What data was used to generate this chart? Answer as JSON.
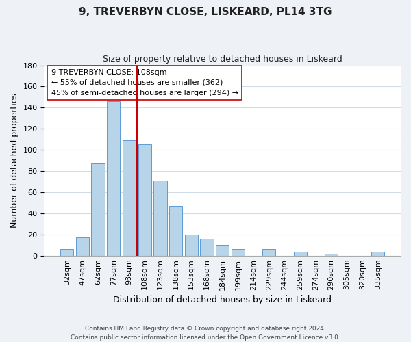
{
  "title": "9, TREVERBYN CLOSE, LISKEARD, PL14 3TG",
  "subtitle": "Size of property relative to detached houses in Liskeard",
  "xlabel": "Distribution of detached houses by size in Liskeard",
  "ylabel": "Number of detached properties",
  "categories": [
    "32sqm",
    "47sqm",
    "62sqm",
    "77sqm",
    "93sqm",
    "108sqm",
    "123sqm",
    "138sqm",
    "153sqm",
    "168sqm",
    "184sqm",
    "199sqm",
    "214sqm",
    "229sqm",
    "244sqm",
    "259sqm",
    "274sqm",
    "290sqm",
    "305sqm",
    "320sqm",
    "335sqm"
  ],
  "values": [
    6,
    17,
    87,
    146,
    109,
    105,
    71,
    47,
    20,
    16,
    10,
    6,
    0,
    6,
    0,
    4,
    0,
    2,
    0,
    0,
    4
  ],
  "bar_color": "#b8d4e8",
  "bar_edge_color": "#5b9bd5",
  "highlight_x": "108sqm",
  "highlight_line_color": "#cc0000",
  "ylim": [
    0,
    180
  ],
  "yticks": [
    0,
    20,
    40,
    60,
    80,
    100,
    120,
    140,
    160,
    180
  ],
  "annotation_text": "9 TREVERBYN CLOSE: 108sqm\n← 55% of detached houses are smaller (362)\n45% of semi-detached houses are larger (294) →",
  "annotation_box_edgecolor": "#cc0000",
  "annotation_box_facecolor": "#ffffff",
  "footer_line1": "Contains HM Land Registry data © Crown copyright and database right 2024.",
  "footer_line2": "Contains public sector information licensed under the Open Government Licence v3.0.",
  "bg_color": "#eef2f7",
  "plot_bg_color": "#ffffff",
  "grid_color": "#d0dce8",
  "title_fontsize": 11,
  "subtitle_fontsize": 9,
  "ylabel_fontsize": 9,
  "xlabel_fontsize": 9,
  "tick_fontsize": 8,
  "annot_fontsize": 8,
  "footer_fontsize": 6.5
}
